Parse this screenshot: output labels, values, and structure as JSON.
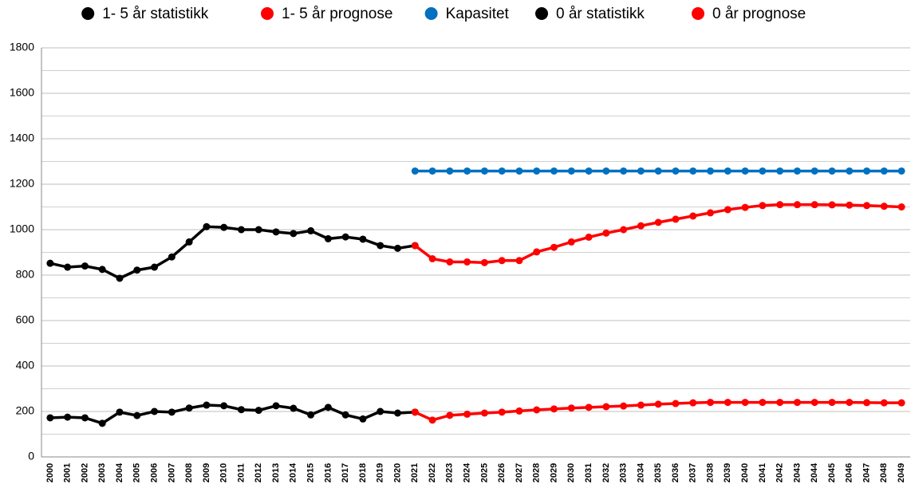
{
  "chart_data": {
    "type": "line",
    "categories": [
      "2000",
      "2001",
      "2002",
      "2003",
      "2004",
      "2005",
      "2006",
      "2007",
      "2008",
      "2009",
      "2010",
      "2011",
      "2012",
      "2013",
      "2014",
      "2015",
      "2016",
      "2017",
      "2018",
      "2019",
      "2020",
      "2021",
      "2022",
      "2023",
      "2024",
      "2025",
      "2026",
      "2027",
      "2028",
      "2029",
      "2030",
      "2031",
      "2032",
      "2033",
      "2034",
      "2035",
      "2036",
      "2037",
      "2038",
      "2039",
      "2040",
      "2041",
      "2042",
      "2043",
      "2044",
      "2045",
      "2046",
      "2047",
      "2048",
      "2049"
    ],
    "series": [
      {
        "name": "1- 5 år statistikk",
        "color": "#000000",
        "values": [
          852,
          835,
          840,
          825,
          786,
          822,
          835,
          880,
          946,
          1013,
          1010,
          1000,
          1000,
          990,
          983,
          995,
          960,
          968,
          958,
          930,
          918,
          930,
          null,
          null,
          null,
          null,
          null,
          null,
          null,
          null,
          null,
          null,
          null,
          null,
          null,
          null,
          null,
          null,
          null,
          null,
          null,
          null,
          null,
          null,
          null,
          null,
          null,
          null,
          null,
          null
        ]
      },
      {
        "name": "1- 5 år prognose",
        "color": "#ff0000",
        "values": [
          null,
          null,
          null,
          null,
          null,
          null,
          null,
          null,
          null,
          null,
          null,
          null,
          null,
          null,
          null,
          null,
          null,
          null,
          null,
          null,
          null,
          930,
          872,
          858,
          858,
          855,
          864,
          864,
          902,
          922,
          946,
          967,
          985,
          1000,
          1017,
          1032,
          1046,
          1060,
          1074,
          1088,
          1098,
          1106,
          1110,
          1110,
          1110,
          1109,
          1108,
          1106,
          1103,
          1100
        ]
      },
      {
        "name": "Kapasitet",
        "color": "#0070c0",
        "values": [
          null,
          null,
          null,
          null,
          null,
          null,
          null,
          null,
          null,
          null,
          null,
          null,
          null,
          null,
          null,
          null,
          null,
          null,
          null,
          null,
          null,
          1258,
          1258,
          1258,
          1258,
          1258,
          1258,
          1258,
          1258,
          1258,
          1258,
          1258,
          1258,
          1258,
          1258,
          1258,
          1258,
          1258,
          1258,
          1258,
          1258,
          1258,
          1258,
          1258,
          1258,
          1258,
          1258,
          1258,
          1258,
          1258
        ]
      },
      {
        "name": "0 år statistikk",
        "color": "#000000",
        "values": [
          172,
          175,
          172,
          148,
          197,
          182,
          200,
          197,
          215,
          228,
          225,
          208,
          205,
          225,
          214,
          185,
          218,
          185,
          167,
          200,
          193,
          197,
          null,
          null,
          null,
          null,
          null,
          null,
          null,
          null,
          null,
          null,
          null,
          null,
          null,
          null,
          null,
          null,
          null,
          null,
          null,
          null,
          null,
          null,
          null,
          null,
          null,
          null,
          null,
          null
        ]
      },
      {
        "name": "0 år prognose",
        "color": "#ff0000",
        "values": [
          null,
          null,
          null,
          null,
          null,
          null,
          null,
          null,
          null,
          null,
          null,
          null,
          null,
          null,
          null,
          null,
          null,
          null,
          null,
          null,
          null,
          197,
          162,
          183,
          188,
          193,
          197,
          202,
          207,
          211,
          215,
          218,
          221,
          224,
          228,
          232,
          235,
          238,
          240,
          240,
          240,
          240,
          240,
          240,
          240,
          240,
          240,
          239,
          238,
          238
        ]
      }
    ],
    "ylim": [
      0,
      1800
    ],
    "yticks": [
      0,
      200,
      400,
      600,
      800,
      1000,
      1200,
      1400,
      1600,
      1800
    ],
    "minor_grid": [
      100,
      300,
      500,
      700,
      900,
      1100,
      1300,
      1500,
      1700
    ],
    "grid": true,
    "legend": "top"
  }
}
